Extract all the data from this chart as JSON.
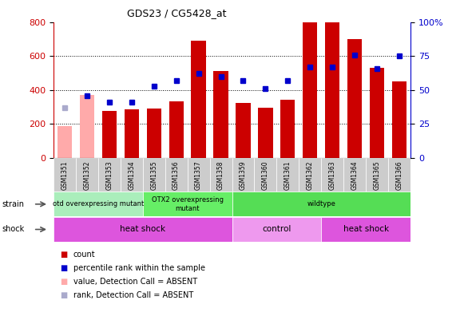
{
  "title": "GDS23 / CG5428_at",
  "samples": [
    "GSM1351",
    "GSM1352",
    "GSM1353",
    "GSM1354",
    "GSM1355",
    "GSM1356",
    "GSM1357",
    "GSM1358",
    "GSM1359",
    "GSM1360",
    "GSM1361",
    "GSM1362",
    "GSM1363",
    "GSM1364",
    "GSM1365",
    "GSM1366"
  ],
  "counts": [
    190,
    370,
    275,
    285,
    290,
    335,
    690,
    510,
    325,
    295,
    345,
    800,
    800,
    700,
    530,
    450
  ],
  "absent_flags": [
    true,
    true,
    false,
    false,
    false,
    false,
    false,
    false,
    false,
    false,
    false,
    false,
    false,
    false,
    false,
    false
  ],
  "percentile_ranks": [
    37,
    46,
    41,
    41,
    53,
    57,
    62,
    60,
    57,
    51,
    57,
    67,
    67,
    76,
    66,
    75
  ],
  "absent_rank_flags": [
    true,
    false,
    false,
    false,
    false,
    false,
    false,
    false,
    false,
    false,
    false,
    false,
    false,
    false,
    false,
    false
  ],
  "ylim_left": [
    0,
    800
  ],
  "ylim_right": [
    0,
    100
  ],
  "yticks_left": [
    0,
    200,
    400,
    600,
    800
  ],
  "yticks_right": [
    0,
    25,
    50,
    75,
    100
  ],
  "bar_color": "#cc0000",
  "bar_color_absent": "#ffaaaa",
  "dot_color": "#0000cc",
  "dot_color_absent": "#aaaacc",
  "strain_groups": [
    {
      "label": "otd overexpressing mutant",
      "start": 0,
      "end": 4,
      "color": "#aaeebb"
    },
    {
      "label": "OTX2 overexpressing\nmutant",
      "start": 4,
      "end": 8,
      "color": "#66ee66"
    },
    {
      "label": "wildtype",
      "start": 8,
      "end": 16,
      "color": "#55dd55"
    }
  ],
  "shock_groups": [
    {
      "label": "heat shock",
      "start": 0,
      "end": 8,
      "color": "#dd55dd"
    },
    {
      "label": "control",
      "start": 8,
      "end": 12,
      "color": "#ee99ee"
    },
    {
      "label": "heat shock",
      "start": 12,
      "end": 16,
      "color": "#dd55dd"
    }
  ],
  "legend_items": [
    {
      "label": "count",
      "color": "#cc0000"
    },
    {
      "label": "percentile rank within the sample",
      "color": "#0000cc"
    },
    {
      "label": "value, Detection Call = ABSENT",
      "color": "#ffaaaa"
    },
    {
      "label": "rank, Detection Call = ABSENT",
      "color": "#aaaacc"
    }
  ],
  "background_color": "#ffffff",
  "plot_bg_color": "#ffffff",
  "xtick_bg": "#cccccc"
}
